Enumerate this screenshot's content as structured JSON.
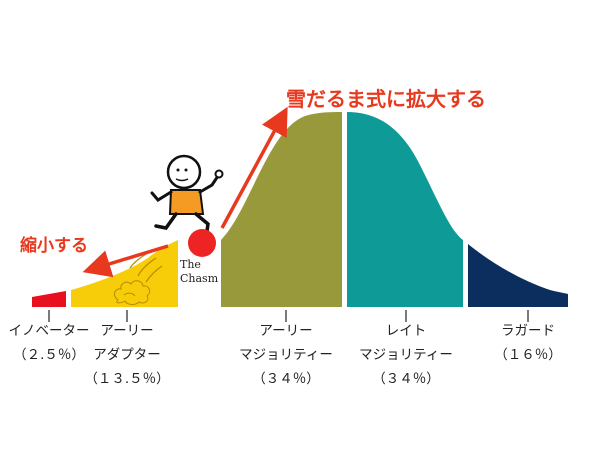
{
  "callouts": {
    "expand": "雪だるま式に拡大する",
    "shrink": "縮小する"
  },
  "chasm_label": {
    "line1": "The",
    "line2": "Chasm"
  },
  "segments": [
    {
      "name": "イノベーター",
      "line2": "",
      "share": "（２.５％）",
      "percent": 2.5,
      "color": "#e8101e"
    },
    {
      "name": "アーリー",
      "line2": "アダプター",
      "share": "（１３.５％）",
      "percent": 13.5,
      "color": "#f7cc08"
    },
    {
      "name": "アーリー",
      "line2": "マジョリティー",
      "share": "（３４％）",
      "percent": 34,
      "color": "#98993a"
    },
    {
      "name": "レイト",
      "line2": "マジョリティー",
      "share": "（３４％）",
      "percent": 34,
      "color": "#0e9b97"
    },
    {
      "name": "ラガード",
      "line2": "",
      "share": "（１６％）",
      "percent": 16,
      "color": "#0b2e5e"
    }
  ],
  "colors": {
    "arrow": "#e8391f",
    "ball": "#ee2424",
    "runner_shirt": "#f59b24"
  }
}
